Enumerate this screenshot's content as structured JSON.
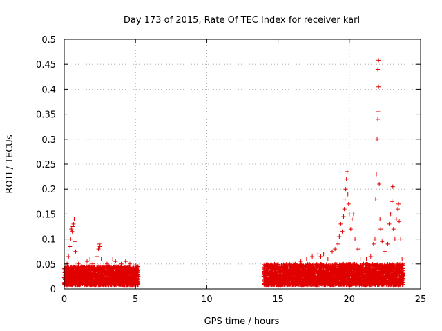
{
  "chart_data": {
    "type": "scatter",
    "title": "Day 173 of 2015, Rate Of TEC Index for receiver karl",
    "xlabel": "GPS time / hours",
    "ylabel": "ROTI / TECUs",
    "xlim": [
      0,
      25
    ],
    "ylim": [
      0,
      0.5
    ],
    "x_ticks": [
      0,
      5,
      10,
      15,
      20,
      25
    ],
    "x_tick_labels": [
      "0",
      "5",
      "10",
      "15",
      "20",
      "25"
    ],
    "y_ticks": [
      0,
      0.05,
      0.1,
      0.15,
      0.2,
      0.25,
      0.3,
      0.35,
      0.4,
      0.45,
      0.5
    ],
    "y_tick_labels": [
      "0",
      "0.05",
      "0.1",
      "0.15",
      "0.2",
      "0.25",
      "0.3",
      "0.35",
      "0.4",
      "0.45",
      "0.5"
    ],
    "grid": true,
    "marker": "+",
    "color": "#e00000",
    "series": [
      {
        "name": "ROTI",
        "segments": [
          {
            "x_start": 0.0,
            "x_end": 5.2,
            "base_min": 0.008,
            "base_max": 0.045
          },
          {
            "x_start": 14.0,
            "x_end": 23.8,
            "base_min": 0.008,
            "base_max": 0.05
          }
        ],
        "points": [
          [
            0.1,
            0.045
          ],
          [
            0.2,
            0.05
          ],
          [
            0.3,
            0.065
          ],
          [
            0.4,
            0.085
          ],
          [
            0.45,
            0.1
          ],
          [
            0.5,
            0.12
          ],
          [
            0.55,
            0.115
          ],
          [
            0.6,
            0.125
          ],
          [
            0.65,
            0.13
          ],
          [
            0.7,
            0.14
          ],
          [
            0.75,
            0.095
          ],
          [
            0.8,
            0.075
          ],
          [
            0.9,
            0.06
          ],
          [
            1.0,
            0.05
          ],
          [
            1.2,
            0.045
          ],
          [
            1.6,
            0.055
          ],
          [
            1.8,
            0.06
          ],
          [
            2.0,
            0.05
          ],
          [
            2.3,
            0.065
          ],
          [
            2.4,
            0.08
          ],
          [
            2.45,
            0.09
          ],
          [
            2.5,
            0.085
          ],
          [
            2.6,
            0.06
          ],
          [
            3.0,
            0.05
          ],
          [
            3.4,
            0.06
          ],
          [
            3.6,
            0.055
          ],
          [
            4.0,
            0.05
          ],
          [
            4.3,
            0.055
          ],
          [
            4.6,
            0.05
          ],
          [
            5.0,
            0.048
          ],
          [
            14.3,
            0.045
          ],
          [
            14.8,
            0.04
          ],
          [
            15.4,
            0.045
          ],
          [
            15.8,
            0.05
          ],
          [
            16.2,
            0.05
          ],
          [
            16.6,
            0.055
          ],
          [
            17.0,
            0.06
          ],
          [
            17.4,
            0.065
          ],
          [
            17.8,
            0.07
          ],
          [
            18.0,
            0.065
          ],
          [
            18.2,
            0.07
          ],
          [
            18.5,
            0.06
          ],
          [
            18.8,
            0.075
          ],
          [
            19.0,
            0.08
          ],
          [
            19.2,
            0.09
          ],
          [
            19.3,
            0.105
          ],
          [
            19.4,
            0.13
          ],
          [
            19.5,
            0.115
          ],
          [
            19.6,
            0.145
          ],
          [
            19.65,
            0.16
          ],
          [
            19.7,
            0.18
          ],
          [
            19.75,
            0.2
          ],
          [
            19.8,
            0.22
          ],
          [
            19.85,
            0.235
          ],
          [
            19.9,
            0.19
          ],
          [
            19.95,
            0.17
          ],
          [
            20.0,
            0.15
          ],
          [
            20.1,
            0.12
          ],
          [
            20.2,
            0.14
          ],
          [
            20.3,
            0.15
          ],
          [
            20.4,
            0.1
          ],
          [
            20.6,
            0.08
          ],
          [
            20.8,
            0.06
          ],
          [
            21.0,
            0.05
          ],
          [
            21.2,
            0.06
          ],
          [
            21.5,
            0.065
          ],
          [
            21.7,
            0.09
          ],
          [
            21.8,
            0.1
          ],
          [
            21.85,
            0.18
          ],
          [
            21.9,
            0.23
          ],
          [
            21.95,
            0.3
          ],
          [
            22.0,
            0.34
          ],
          [
            22.02,
            0.355
          ],
          [
            22.05,
            0.405
          ],
          [
            22.0,
            0.44
          ],
          [
            22.05,
            0.458
          ],
          [
            22.1,
            0.21
          ],
          [
            22.15,
            0.14
          ],
          [
            22.2,
            0.12
          ],
          [
            22.3,
            0.095
          ],
          [
            22.5,
            0.075
          ],
          [
            22.7,
            0.09
          ],
          [
            22.8,
            0.13
          ],
          [
            22.9,
            0.15
          ],
          [
            23.0,
            0.175
          ],
          [
            23.05,
            0.205
          ],
          [
            23.1,
            0.12
          ],
          [
            23.2,
            0.1
          ],
          [
            23.3,
            0.14
          ],
          [
            23.4,
            0.16
          ],
          [
            23.45,
            0.17
          ],
          [
            23.5,
            0.135
          ],
          [
            23.6,
            0.1
          ],
          [
            23.7,
            0.06
          ],
          [
            23.75,
            0.05
          ]
        ]
      }
    ]
  }
}
